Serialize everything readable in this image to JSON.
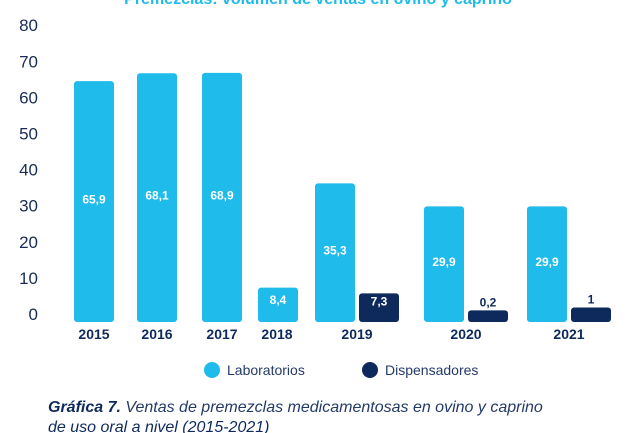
{
  "chart_data": {
    "type": "bar",
    "title": "Premezclas: volumen de ventas en ovino y caprino",
    "categories": [
      "2015",
      "2016",
      "2017",
      "2018",
      "2019",
      "2020",
      "2021"
    ],
    "series": [
      {
        "name": "Laboratorios",
        "color": "#1ebbeb",
        "values": [
          65.9,
          68.1,
          68.9,
          8.4,
          35.3,
          29.9,
          29.9
        ],
        "bar_heights": [
          64.5,
          66.7,
          66.8,
          7.3,
          36.2,
          29.8,
          29.8
        ],
        "labels": [
          "65,9",
          "68,1",
          "68,9",
          "8,4",
          "35,3",
          "29,9",
          "29,9"
        ]
      },
      {
        "name": "Dispensadores",
        "color": "#0e2a5c",
        "values": [
          null,
          null,
          null,
          null,
          7.3,
          0.2,
          1
        ],
        "bar_heights": [
          null,
          null,
          null,
          null,
          5.7,
          1.0,
          1.8
        ],
        "labels": [
          null,
          null,
          null,
          null,
          "7,3",
          "0,2",
          "1"
        ]
      }
    ],
    "y_ticks": [
      "0",
      "10",
      "20",
      "30",
      "40",
      "50",
      "60",
      "70",
      "80"
    ],
    "ylim": [
      0,
      80
    ],
    "xlabel": "",
    "ylabel": "",
    "grid": false,
    "legend_position": "bottom"
  },
  "caption": {
    "label": "Gráfica 7.",
    "text": "Ventas de premezclas medicamentosas en ovino y caprino",
    "line2": "de uso oral a nivel (2015-2021)"
  }
}
